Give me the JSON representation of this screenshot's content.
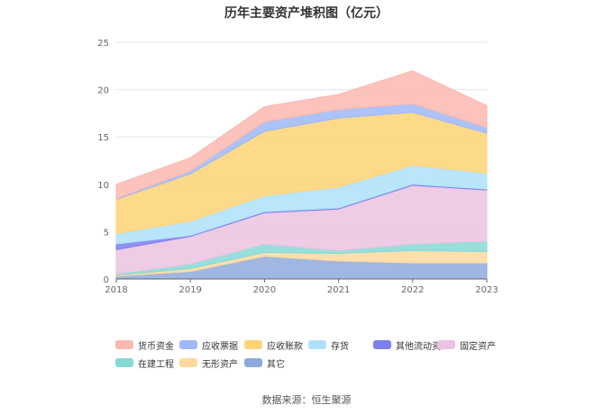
{
  "chart_data": {
    "type": "area",
    "stacked": true,
    "title": "历年主要资产堆积图（亿元）",
    "x": [
      "2018",
      "2019",
      "2020",
      "2021",
      "2022",
      "2023"
    ],
    "ylim": [
      0,
      25
    ],
    "yticks": [
      0,
      5,
      10,
      15,
      20,
      25
    ],
    "grid": true,
    "legend_position": "bottom",
    "series": [
      {
        "name": "其它",
        "color": "#8eaadc",
        "values": [
          0.3,
          0.8,
          2.4,
          1.9,
          1.7,
          1.7
        ]
      },
      {
        "name": "无形资产",
        "color": "#fdd9a0",
        "values": [
          0.1,
          0.3,
          0.4,
          0.8,
          1.3,
          1.2
        ]
      },
      {
        "name": "在建工程",
        "color": "#86d9d6",
        "values": [
          0.1,
          0.5,
          0.9,
          0.3,
          0.7,
          1.1
        ]
      },
      {
        "name": "固定资产",
        "color": "#ebc3e0",
        "values": [
          2.6,
          2.9,
          3.3,
          4.4,
          6.2,
          5.4
        ]
      },
      {
        "name": "其他流动资产",
        "color": "#7c7fee",
        "values": [
          0.6,
          0.1,
          0.1,
          0.1,
          0.1,
          0.1
        ]
      },
      {
        "name": "存货",
        "color": "#aee2fb",
        "values": [
          1.1,
          1.5,
          1.7,
          2.2,
          2.0,
          1.7
        ]
      },
      {
        "name": "应收账款",
        "color": "#fdd376",
        "values": [
          3.6,
          5.0,
          6.8,
          7.3,
          5.6,
          4.2
        ]
      },
      {
        "name": "应收票据",
        "color": "#9eb8f8",
        "values": [
          0.1,
          0.3,
          1.0,
          0.9,
          0.9,
          0.6
        ]
      },
      {
        "name": "货币资金",
        "color": "#fbb7b0",
        "values": [
          1.5,
          1.4,
          1.6,
          1.6,
          3.5,
          2.3
        ]
      }
    ],
    "legend_order": [
      "货币资金",
      "应收票据",
      "应收账款",
      "存货",
      "其他流动资产",
      "固定资产",
      "在建工程",
      "无形资产",
      "其它"
    ]
  },
  "source": "数据来源：恒生聚源"
}
